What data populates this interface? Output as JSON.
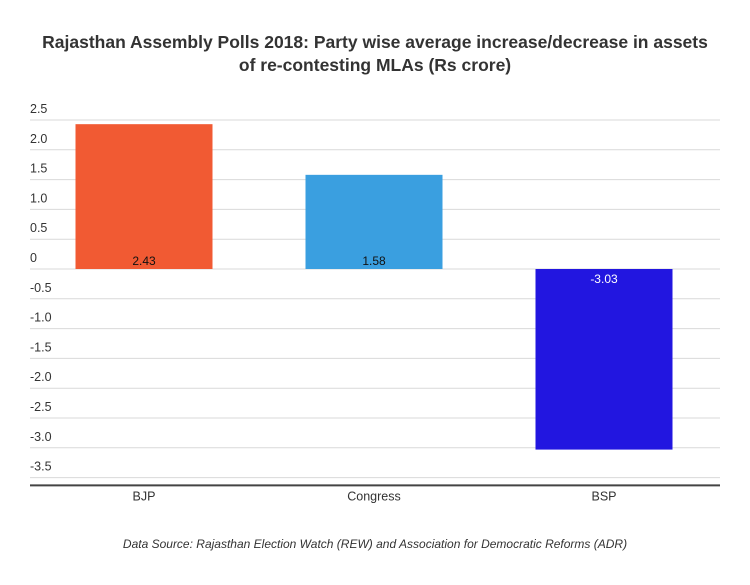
{
  "chart_data": {
    "type": "bar",
    "title_lines": [
      "Rajasthan Assembly Polls 2018: Party wise average increase/decrease in assets",
      "of re-contesting MLAs (Rs crore)"
    ],
    "categories": [
      "BJP",
      "Congress",
      "BSP"
    ],
    "values": [
      2.43,
      1.58,
      -3.03
    ],
    "value_labels": [
      "2.43",
      "1.58",
      "-3.03"
    ],
    "colors": [
      "#f15a33",
      "#3a9fe0",
      "#2216e0"
    ],
    "yticks": [
      2.5,
      2.0,
      1.5,
      1.0,
      0.5,
      0,
      -0.5,
      -1.0,
      -1.5,
      -2.0,
      -2.5,
      -3.0,
      -3.5
    ],
    "ytick_labels": [
      "2.5",
      "2.0",
      "1.5",
      "1.0",
      "0.5",
      "0",
      "-0.5",
      "-1.0",
      "-1.5",
      "-2.0",
      "-2.5",
      "-3.0",
      "-3.5"
    ],
    "ylim": [
      -3.63,
      2.5
    ],
    "grid": true,
    "xlabel": "",
    "ylabel": ""
  },
  "source": "Data Source: Rajasthan Election Watch (REW) and Association for Democratic Reforms (ADR)"
}
